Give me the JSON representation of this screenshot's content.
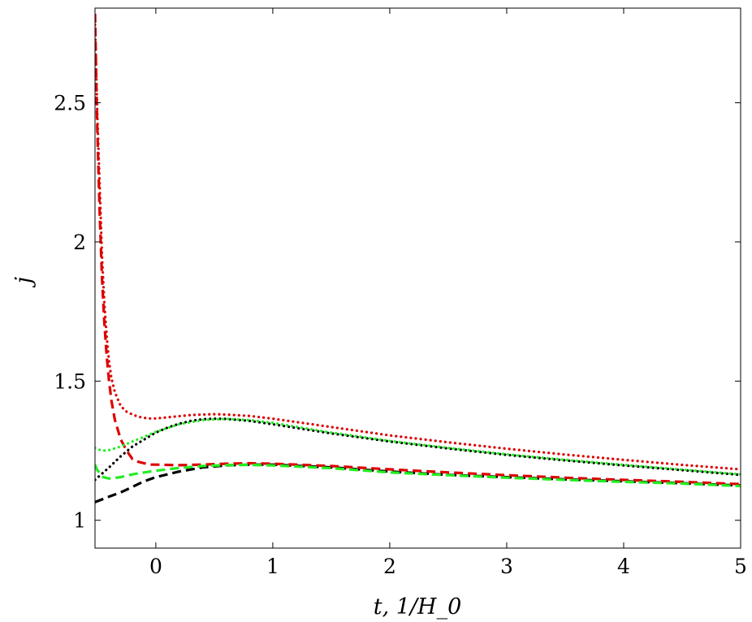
{
  "chart_data": {
    "type": "line",
    "title": "",
    "xlabel": "t, 1/H_0",
    "ylabel": "j",
    "xlim": [
      -0.52,
      5
    ],
    "ylim": [
      0.9,
      2.84
    ],
    "xticks": [
      0,
      1,
      2,
      3,
      4,
      5
    ],
    "yticks": [
      1,
      1.5,
      2,
      2.5
    ],
    "ytick_labels": [
      "1",
      "1.5",
      "2",
      "2.5"
    ],
    "grid": false,
    "legend": "none",
    "series": [
      {
        "color": "#000000",
        "style": "dashed",
        "x": [
          -0.52,
          -0.4,
          -0.3,
          -0.2,
          -0.1,
          0,
          0.2,
          0.4,
          0.6,
          0.8,
          1,
          1.5,
          2,
          2.5,
          3,
          3.5,
          4,
          4.5,
          5
        ],
        "y": [
          1.065,
          1.085,
          1.1,
          1.12,
          1.14,
          1.155,
          1.175,
          1.19,
          1.197,
          1.2,
          1.2,
          1.19,
          1.175,
          1.163,
          1.155,
          1.147,
          1.14,
          1.133,
          1.125
        ]
      },
      {
        "color": "#dd0000",
        "style": "dashed",
        "x": [
          -0.52,
          -0.51,
          -0.5,
          -0.48,
          -0.46,
          -0.44,
          -0.42,
          -0.4,
          -0.38,
          -0.35,
          -0.3,
          -0.25,
          -0.2,
          -0.15,
          -0.1,
          -0.05,
          0,
          0.2,
          0.4,
          0.6,
          0.8,
          1,
          1.5,
          2,
          2.5,
          3,
          3.5,
          4,
          4.5,
          5
        ],
        "y": [
          2.82,
          2.6,
          2.4,
          2.1,
          1.87,
          1.71,
          1.59,
          1.5,
          1.43,
          1.36,
          1.29,
          1.25,
          1.22,
          1.21,
          1.205,
          1.2,
          1.2,
          1.198,
          1.2,
          1.203,
          1.205,
          1.203,
          1.195,
          1.183,
          1.172,
          1.162,
          1.153,
          1.145,
          1.138,
          1.13
        ]
      },
      {
        "color": "#22ee22",
        "style": "dashed",
        "x": [
          -0.52,
          -0.5,
          -0.45,
          -0.4,
          -0.3,
          -0.2,
          -0.1,
          0,
          0.2,
          0.4,
          0.6,
          0.8,
          1,
          1.5,
          2,
          2.5,
          3,
          3.5,
          4,
          4.5,
          5
        ],
        "y": [
          1.2,
          1.18,
          1.155,
          1.15,
          1.155,
          1.165,
          1.172,
          1.178,
          1.188,
          1.195,
          1.198,
          1.199,
          1.197,
          1.187,
          1.172,
          1.162,
          1.153,
          1.145,
          1.138,
          1.132,
          1.123
        ]
      },
      {
        "color": "#000000",
        "style": "dotted",
        "x": [
          -0.52,
          -0.4,
          -0.3,
          -0.2,
          -0.1,
          0,
          0.1,
          0.2,
          0.3,
          0.4,
          0.5,
          0.6,
          0.8,
          1,
          1.5,
          2,
          2.5,
          3,
          3.5,
          4,
          4.5,
          5
        ],
        "y": [
          1.145,
          1.19,
          1.23,
          1.265,
          1.29,
          1.315,
          1.333,
          1.347,
          1.357,
          1.363,
          1.365,
          1.364,
          1.357,
          1.345,
          1.312,
          1.283,
          1.258,
          1.235,
          1.215,
          1.197,
          1.18,
          1.163
        ]
      },
      {
        "color": "#dd0000",
        "style": "dotted",
        "x": [
          -0.52,
          -0.5,
          -0.48,
          -0.46,
          -0.44,
          -0.42,
          -0.4,
          -0.38,
          -0.35,
          -0.3,
          -0.25,
          -0.2,
          -0.15,
          -0.1,
          -0.05,
          0,
          0.1,
          0.2,
          0.3,
          0.4,
          0.5,
          0.6,
          0.8,
          1,
          1.5,
          2,
          2.5,
          3,
          3.5,
          4,
          4.5,
          5
        ],
        "y": [
          2.78,
          2.45,
          2.2,
          1.95,
          1.78,
          1.66,
          1.57,
          1.51,
          1.46,
          1.41,
          1.39,
          1.38,
          1.372,
          1.368,
          1.366,
          1.366,
          1.37,
          1.374,
          1.378,
          1.38,
          1.381,
          1.38,
          1.375,
          1.365,
          1.335,
          1.305,
          1.28,
          1.257,
          1.236,
          1.217,
          1.199,
          1.183
        ]
      },
      {
        "color": "#22ee22",
        "style": "dotted",
        "x": [
          -0.52,
          -0.5,
          -0.45,
          -0.4,
          -0.3,
          -0.2,
          -0.1,
          0,
          0.2,
          0.4,
          0.6,
          0.8,
          1,
          1.5,
          2,
          2.5,
          3,
          3.5,
          4,
          4.5,
          5
        ],
        "y": [
          1.26,
          1.255,
          1.25,
          1.252,
          1.265,
          1.283,
          1.3,
          1.318,
          1.345,
          1.36,
          1.364,
          1.36,
          1.35,
          1.315,
          1.285,
          1.26,
          1.237,
          1.217,
          1.199,
          1.182,
          1.165
        ]
      }
    ]
  }
}
